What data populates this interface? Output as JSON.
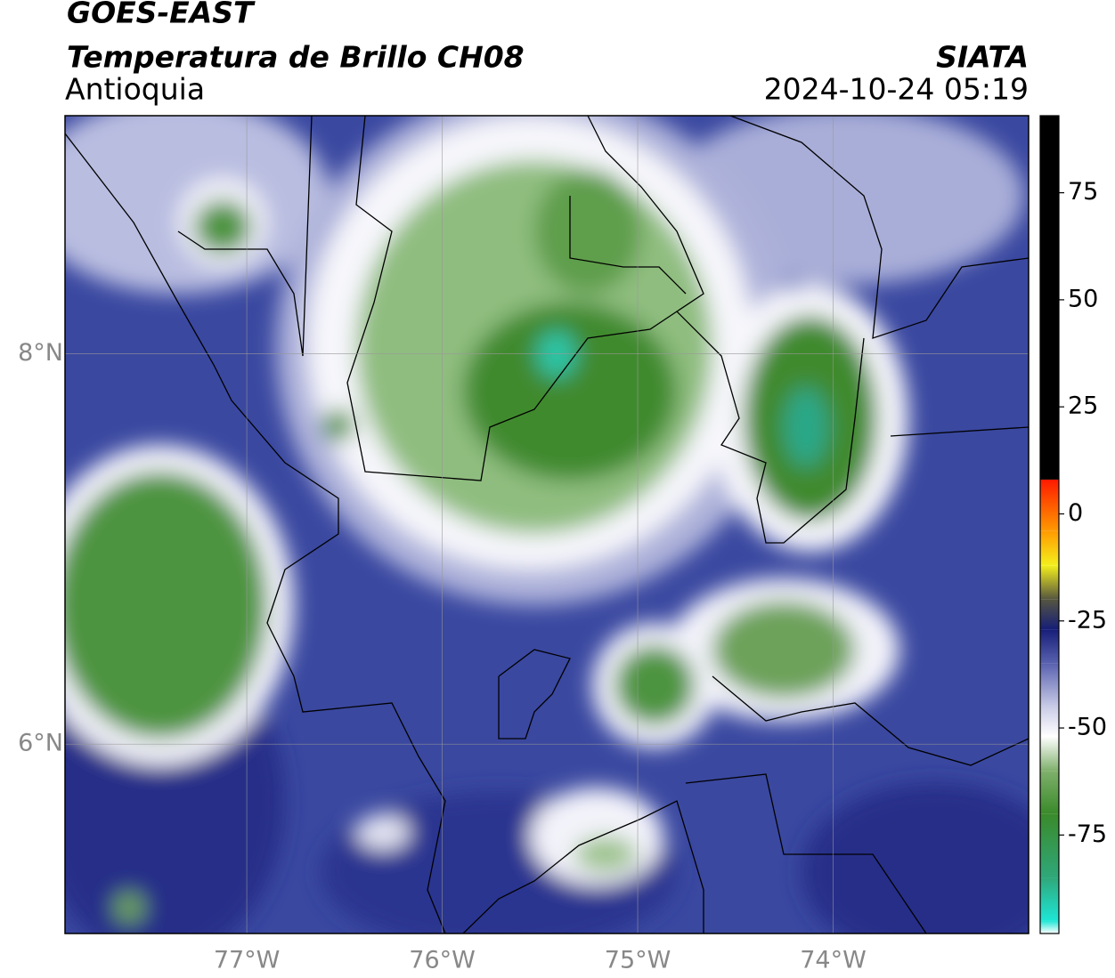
{
  "chart_data": {
    "type": "map",
    "title": "GOES-EAST",
    "subtitle": "Temperatura de Brillo CH08",
    "source": "SIATA",
    "region": "Antioquia",
    "timestamp": "2024-10-24 05:19",
    "xlim": [
      -77.93,
      -73.0
    ],
    "ylim": [
      5.03,
      9.22
    ],
    "xticks": [
      {
        "value": -77,
        "label": "77°W"
      },
      {
        "value": -76,
        "label": "76°W"
      },
      {
        "value": -75,
        "label": "75°W"
      },
      {
        "value": -74,
        "label": "74°W"
      }
    ],
    "yticks": [
      {
        "value": 6,
        "label": "6°N"
      },
      {
        "value": 8,
        "label": "8°N"
      }
    ],
    "grid": true,
    "colorbar": {
      "clim": [
        -98,
        93
      ],
      "ticks": [
        -75,
        -50,
        -25,
        0,
        25,
        50,
        75
      ],
      "stops": [
        {
          "value": -98,
          "color": "#ffffff"
        },
        {
          "value": -95,
          "color": "#1ee6d6"
        },
        {
          "value": -85,
          "color": "#2fa87a"
        },
        {
          "value": -70,
          "color": "#3a8a2a"
        },
        {
          "value": -60,
          "color": "#7fb06c"
        },
        {
          "value": -52,
          "color": "#ffffff"
        },
        {
          "value": -45,
          "color": "#c9cbe6"
        },
        {
          "value": -35,
          "color": "#5a62b0"
        },
        {
          "value": -27,
          "color": "#161e78"
        },
        {
          "value": -20,
          "color": "#555540"
        },
        {
          "value": -12,
          "color": "#f4ef1c"
        },
        {
          "value": -4,
          "color": "#ff9a00"
        },
        {
          "value": 8,
          "color": "#ff1a00"
        },
        {
          "value": 8.01,
          "color": "#000000"
        },
        {
          "value": 93,
          "color": "#000000"
        }
      ]
    }
  }
}
